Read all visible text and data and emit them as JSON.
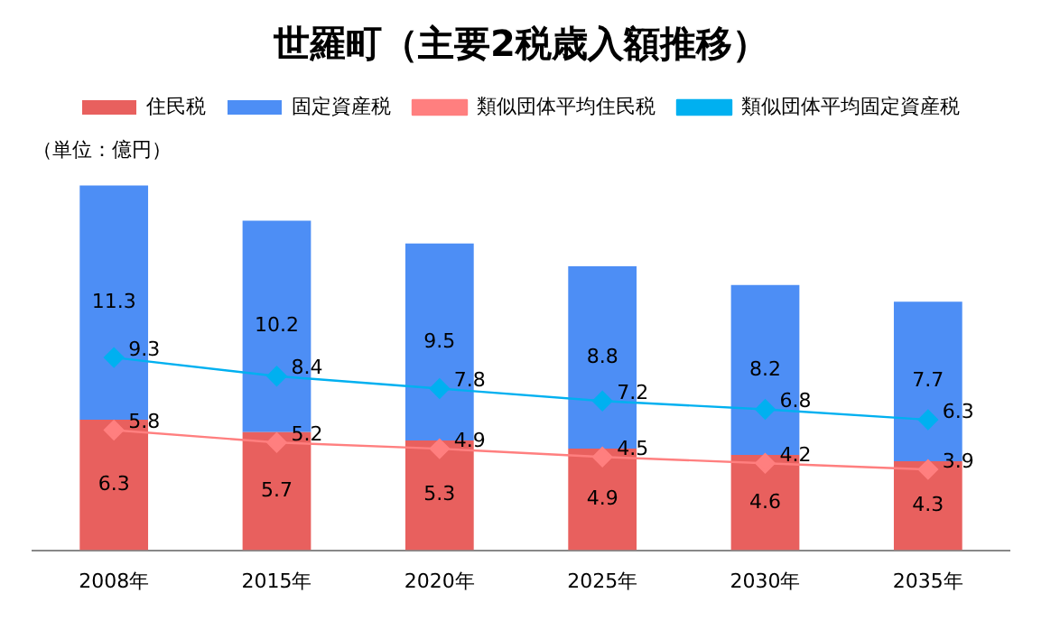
{
  "chart_data": {
    "type": "bar",
    "title": "世羅町（主要2税歳入額推移）",
    "annotations": [
      "（単位：億円）"
    ],
    "categories": [
      "2008年",
      "2015年",
      "2020年",
      "2025年",
      "2030年",
      "2035年"
    ],
    "stacked": true,
    "data_labels": true,
    "legend": "top",
    "grid": false,
    "tick_labels": "x",
    "series": [
      {
        "name": "住民税",
        "color": "#e8605e",
        "values": [
          6.3,
          5.7,
          5.3,
          4.9,
          4.6,
          4.3
        ]
      },
      {
        "name": "固定資産税",
        "color": "#4d8ef5",
        "values": [
          11.3,
          10.2,
          9.5,
          8.8,
          8.2,
          7.7
        ]
      },
      {
        "name": "類似団体平均住民税",
        "type": "line",
        "marker": "diamond",
        "color": "#ff7f7f",
        "values": [
          5.8,
          5.2,
          4.9,
          4.5,
          4.2,
          3.9
        ]
      },
      {
        "name": "類似団体平均固定資産税",
        "type": "line",
        "marker": "diamond",
        "color": "#00b0f0",
        "values": [
          9.3,
          8.4,
          7.8,
          7.2,
          6.8,
          6.3
        ]
      }
    ]
  }
}
